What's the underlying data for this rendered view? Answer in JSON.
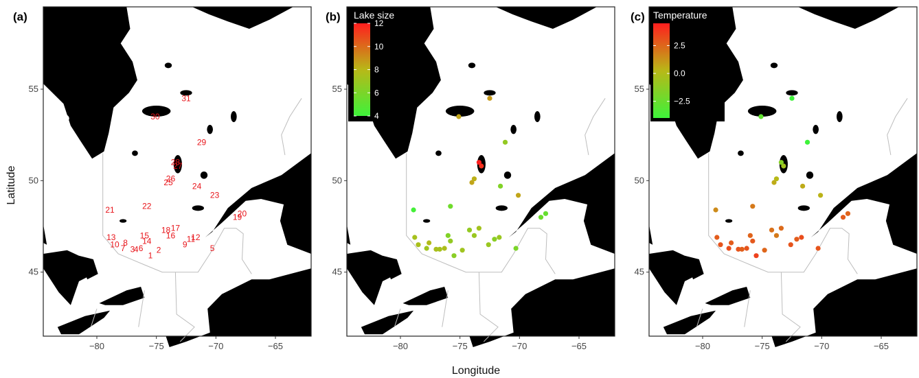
{
  "figure": {
    "xlabel": "Longitude",
    "ylabel": "Latitude",
    "x_ticks": [
      "-80",
      "-75",
      "-70",
      "-65"
    ],
    "y_ticks": [
      "45",
      "50",
      "55"
    ],
    "xlim": [
      -84.5,
      -62
    ],
    "ylim": [
      41.5,
      59.5
    ]
  },
  "panels": [
    {
      "tag": "(a)",
      "kind": "labels"
    },
    {
      "tag": "(b)",
      "kind": "size",
      "legend_title": "Lake size",
      "legend_ticks": [
        "12",
        "10",
        "8",
        "6",
        "4"
      ],
      "legend_range": [
        4,
        12
      ]
    },
    {
      "tag": "(c)",
      "kind": "temp",
      "legend_title": "Temperature",
      "legend_ticks": [
        "2.5",
        "0.0",
        "−2.5"
      ],
      "legend_range": [
        -4,
        4.5
      ]
    }
  ],
  "colors": {
    "low": "#3ef23a",
    "mid": "#b8b818",
    "high": "#ff1e1e",
    "land": "#ffffff",
    "water": "#000000",
    "label": "#e8141a"
  },
  "sites": [
    {
      "id": "1",
      "lon": -75.5,
      "lat": 45.9,
      "size": 6.5,
      "temp": 3.5
    },
    {
      "id": "2",
      "lon": -74.8,
      "lat": 46.2,
      "size": 7.2,
      "temp": 2.5
    },
    {
      "id": "3",
      "lon": -77.0,
      "lat": 46.25,
      "size": 7.5,
      "temp": 3.0
    },
    {
      "id": "4",
      "lon": -76.7,
      "lat": 46.25,
      "size": 7.4,
      "temp": 2.7
    },
    {
      "id": "5",
      "lon": -70.3,
      "lat": 46.3,
      "size": 6.0,
      "temp": 3.0
    },
    {
      "id": "6",
      "lon": -76.3,
      "lat": 46.3,
      "size": 7.6,
      "temp": 3.0
    },
    {
      "id": "7",
      "lon": -77.8,
      "lat": 46.3,
      "size": 7.2,
      "temp": 3.2
    },
    {
      "id": "8",
      "lon": -77.6,
      "lat": 46.6,
      "size": 7.8,
      "temp": 2.8
    },
    {
      "id": "9",
      "lon": -72.6,
      "lat": 46.5,
      "size": 7.0,
      "temp": 3.0
    },
    {
      "id": "10",
      "lon": -78.5,
      "lat": 46.5,
      "size": 7.5,
      "temp": 3.0
    },
    {
      "id": "11",
      "lon": -72.1,
      "lat": 46.8,
      "size": 6.5,
      "temp": 2.8
    },
    {
      "id": "12",
      "lon": -71.7,
      "lat": 46.9,
      "size": 7.0,
      "temp": 3.2
    },
    {
      "id": "13",
      "lon": -78.8,
      "lat": 46.9,
      "size": 7.4,
      "temp": 2.8
    },
    {
      "id": "14",
      "lon": -75.8,
      "lat": 46.7,
      "size": 6.8,
      "temp": 2.9
    },
    {
      "id": "15",
      "lon": -76.0,
      "lat": 47.0,
      "size": 6.2,
      "temp": 2.6
    },
    {
      "id": "16",
      "lon": -73.8,
      "lat": 47.0,
      "size": 7.0,
      "temp": 2.0
    },
    {
      "id": "17",
      "lon": -73.4,
      "lat": 47.4,
      "size": 7.3,
      "temp": 2.4
    },
    {
      "id": "18",
      "lon": -74.2,
      "lat": 47.3,
      "size": 6.8,
      "temp": 2.2
    },
    {
      "id": "19",
      "lon": -68.2,
      "lat": 48.0,
      "size": 5.5,
      "temp": 2.8
    },
    {
      "id": "20",
      "lon": -67.8,
      "lat": 48.2,
      "size": 5.3,
      "temp": 2.6
    },
    {
      "id": "21",
      "lon": -78.9,
      "lat": 48.4,
      "size": 4.2,
      "temp": 1.5
    },
    {
      "id": "22",
      "lon": -75.8,
      "lat": 48.6,
      "size": 5.6,
      "temp": 2.0
    },
    {
      "id": "23",
      "lon": -70.1,
      "lat": 49.2,
      "size": 8.5,
      "temp": 0.4
    },
    {
      "id": "24",
      "lon": -71.6,
      "lat": 49.7,
      "size": 6.2,
      "temp": 0.6
    },
    {
      "id": "25",
      "lon": -74.0,
      "lat": 49.9,
      "size": 8.5,
      "temp": 0.6
    },
    {
      "id": "26",
      "lon": -73.8,
      "lat": 50.1,
      "size": 8.2,
      "temp": 0.2
    },
    {
      "id": "27",
      "lon": -73.2,
      "lat": 50.8,
      "size": 11.5,
      "temp": -0.5
    },
    {
      "id": "28",
      "lon": -73.4,
      "lat": 51.0,
      "size": 12.0,
      "temp": -1.5
    },
    {
      "id": "29",
      "lon": -71.2,
      "lat": 52.1,
      "size": 6.8,
      "temp": -4.0
    },
    {
      "id": "30",
      "lon": -75.1,
      "lat": 53.5,
      "size": 8.5,
      "temp": -2.8
    },
    {
      "id": "31",
      "lon": -72.5,
      "lat": 54.5,
      "size": 8.8,
      "temp": -4.5
    }
  ]
}
